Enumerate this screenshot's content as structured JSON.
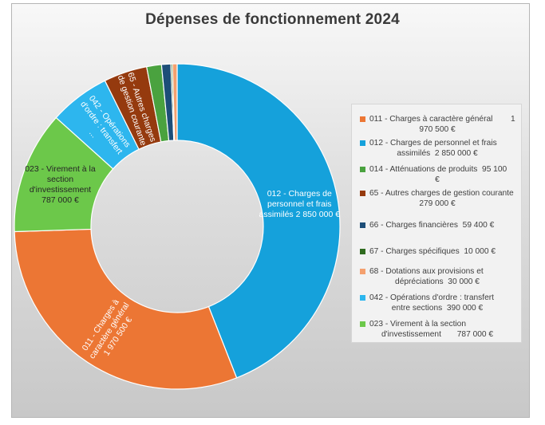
{
  "chart_data": {
    "type": "pie",
    "title": "Dépenses de fonctionnement  2024",
    "colors": {
      "011": "#ec7634",
      "012": "#15a1db",
      "014": "#4aa23f",
      "65": "#953a0e",
      "66": "#1d4e78",
      "67": "#2f6b1f",
      "68": "#f4a06e",
      "042": "#2db6ee",
      "023": "#6cc84a"
    },
    "series": [
      {
        "values": [
          {
            "code": "012",
            "value": 2850000
          },
          {
            "code": "011",
            "value": 1970500
          },
          {
            "code": "023",
            "value": 787000
          },
          {
            "code": "042",
            "value": 390000
          },
          {
            "code": "65",
            "value": 279000
          },
          {
            "code": "014",
            "value": 95100
          },
          {
            "code": "66",
            "value": 59400
          },
          {
            "code": "67",
            "value": 10000
          },
          {
            "code": "68",
            "value": 30000
          }
        ]
      }
    ],
    "legend": {
      "position": "right",
      "entries": [
        {
          "code": "011",
          "lines": [
            "011 - Charges à caractère général        1",
            "970 500 €"
          ]
        },
        {
          "code": "012",
          "lines": [
            "012 - Charges de personnel et frais",
            "assimilés  2 850 000 €"
          ]
        },
        {
          "code": "014",
          "lines": [
            "014 - Atténuations de produits  95 100",
            "€"
          ]
        },
        {
          "code": "65",
          "lines": [
            "65 - Autres charges de gestion courante",
            "279 000 €"
          ]
        },
        {
          "code": "66",
          "lines": [
            "66 - Charges financières  59 400 €"
          ]
        },
        {
          "code": "67",
          "lines": [
            "67 - Charges spécifiques  10 000 €"
          ]
        },
        {
          "code": "68",
          "lines": [
            "68 - Dotations aux provisions et",
            "dépréciations  30 000 €"
          ]
        },
        {
          "code": "042",
          "lines": [
            "042 - Opérations d'ordre : transfert",
            "entre sections  390 000 €"
          ]
        },
        {
          "code": "023",
          "lines": [
            "023 - Virement à la section",
            "d'investissement       787 000 €"
          ]
        }
      ]
    },
    "slice_labels": [
      {
        "code": "012",
        "lines": [
          "012 - Charges de",
          "personnel et frais",
          "assimilés  2 850 000 €"
        ],
        "style": "light"
      },
      {
        "code": "011",
        "lines": [
          "011 - Charges à",
          "caractère général",
          "1 970 500 €"
        ],
        "style": "light"
      },
      {
        "code": "023",
        "lines": [
          "023 - Virement à la",
          "section",
          "d'investissement",
          "787 000 €"
        ],
        "style": "dark"
      },
      {
        "code": "042",
        "lines": [
          "042 - Opérations",
          "d'ordre : transfert",
          "..."
        ],
        "style": "light"
      },
      {
        "code": "65",
        "lines": [
          "65 - Autres charges",
          "de gestion courante"
        ],
        "style": "light"
      }
    ]
  }
}
